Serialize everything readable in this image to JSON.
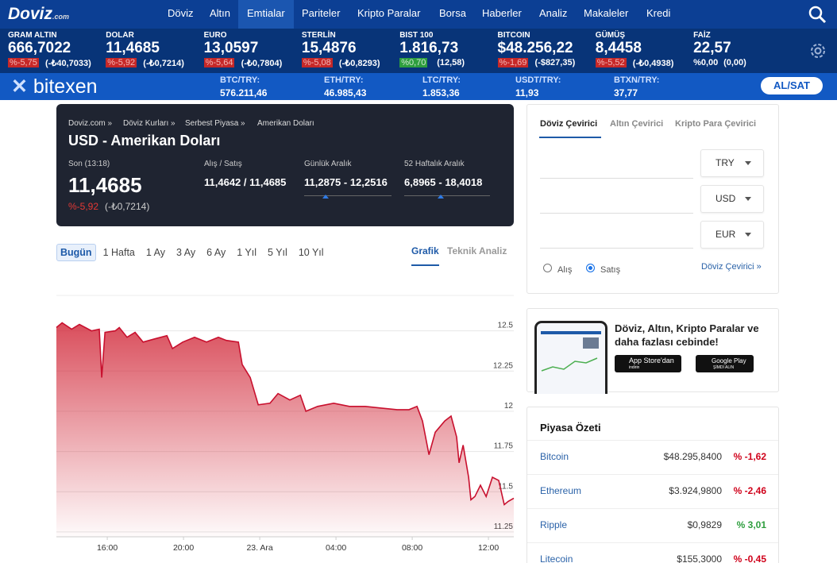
{
  "header": {
    "logo": "Doviz",
    "logo_suffix": ".com",
    "nav": [
      "Döviz",
      "Altın",
      "Emtialar",
      "Pariteler",
      "Kripto Paralar",
      "Borsa",
      "Haberler",
      "Analiz",
      "Makaleler",
      "Kredi"
    ],
    "active_nav": 2
  },
  "tickers": [
    {
      "name": "GRAM ALTIN",
      "value": "666,7022",
      "change": "%-5,75",
      "change_abs": "(-₺40,7033)",
      "change_color": "#c62828"
    },
    {
      "name": "DOLAR",
      "value": "11,4685",
      "change": "%-5,92",
      "change_abs": "(-₺0,7214)",
      "change_color": "#c62828"
    },
    {
      "name": "EURO",
      "value": "13,0597",
      "change": "%-5,64",
      "change_abs": "(-₺0,7804)",
      "change_color": "#c62828"
    },
    {
      "name": "STERLİN",
      "value": "15,4876",
      "change": "%-5,08",
      "change_abs": "(-₺0,8293)",
      "change_color": "#c62828"
    },
    {
      "name": "BIST 100",
      "value": "1.816,73",
      "change": "%0,70",
      "change_abs": "(12,58)",
      "change_color": "#2e9e3e"
    },
    {
      "name": "BITCOIN",
      "value": "$48.256,22",
      "change": "%-1,69",
      "change_abs": "(-$827,35)",
      "change_color": "#c62828"
    },
    {
      "name": "GÜMÜŞ",
      "value": "8,4458",
      "change": "%-5,52",
      "change_abs": "(-₺0,4938)",
      "change_color": "#c62828"
    },
    {
      "name": "FAİZ",
      "value": "22,57",
      "change": "%0,00",
      "change_abs": "(0,00)"
    }
  ],
  "bitexen": {
    "brand": "bitexen",
    "items": [
      {
        "pair": "BTC/TRY:",
        "price": "576.211,46"
      },
      {
        "pair": "ETH/TRY:",
        "price": "46.985,43"
      },
      {
        "pair": "LTC/TRY:",
        "price": "1.853,36"
      },
      {
        "pair": "USDT/TRY:",
        "price": "11,93"
      },
      {
        "pair": "BTXN/TRY:",
        "price": "37,77"
      }
    ],
    "button": "AL/SAT"
  },
  "summary": {
    "breadcrumbs": [
      "Doviz.com »",
      "Döviz Kurları »",
      "Serbest Piyasa »",
      "Amerikan Doları"
    ],
    "title": "USD - Amerikan Doları",
    "last_label": "Son (13:18)",
    "last_value": "11,4685",
    "change": "%-5,92",
    "change_abs": "(-₺0,7214)",
    "bid_ask_label": "Alış / Satış",
    "bid_ask_value": "11,4642 / 11,4685",
    "daily_label": "Günlük Aralık",
    "daily_value": "11,2875 - 12,2516",
    "weekly_label": "52 Haftalık Aralık",
    "weekly_value": "6,8965 - 18,4018"
  },
  "periods": [
    "Bugün",
    "1 Hafta",
    "1 Ay",
    "3 Ay",
    "6 Ay",
    "1 Yıl",
    "5 Yıl",
    "10 Yıl"
  ],
  "active_period": 0,
  "chart_tabs": [
    "Grafik",
    "Teknik Analiz"
  ],
  "chart_data": {
    "type": "line",
    "color": "#c8102e",
    "x": [
      13.33,
      13.63,
      14.13,
      14.54,
      15.17,
      15.58,
      15.71,
      15.88,
      16.42,
      16.63,
      17.04,
      17.46,
      17.88,
      18.5,
      19.13,
      19.42,
      19.96,
      20.58,
      21.21,
      21.83,
      22.25,
      22.88,
      23.08,
      23.5,
      23.92,
      24.54,
      24.96,
      25.58,
      26.13,
      26.42,
      27.04,
      27.88,
      28.71,
      29.54,
      30.38,
      31.21,
      31.83,
      32.25,
      32.54,
      32.88,
      33.21,
      33.71,
      34.04,
      34.33,
      34.46,
      34.67,
      34.96,
      35.08,
      35.29,
      35.58,
      35.88,
      36.21,
      36.54,
      36.83,
      37.04,
      37.33
    ],
    "values": [
      12.52,
      12.55,
      12.51,
      12.54,
      12.5,
      12.51,
      12.21,
      12.49,
      12.5,
      12.52,
      12.46,
      12.49,
      12.43,
      12.45,
      12.47,
      12.39,
      12.43,
      12.46,
      12.43,
      12.46,
      12.44,
      12.43,
      12.29,
      12.21,
      12.04,
      12.05,
      12.11,
      12.07,
      12.1,
      12.0,
      12.03,
      12.05,
      12.03,
      12.03,
      12.02,
      12.01,
      12.01,
      12.03,
      11.94,
      11.73,
      11.87,
      11.94,
      11.97,
      11.84,
      11.68,
      11.79,
      11.59,
      11.45,
      11.47,
      11.54,
      11.47,
      11.59,
      11.57,
      11.42,
      11.44,
      11.46
    ],
    "xlim": [
      13.33,
      37.33
    ],
    "xticks": [
      {
        "value": 16,
        "label": "16:00"
      },
      {
        "value": 20,
        "label": "20:00"
      },
      {
        "value": 24,
        "label": "23. Ara"
      },
      {
        "value": 28,
        "label": "04:00"
      },
      {
        "value": 32,
        "label": "08:00"
      },
      {
        "value": 36,
        "label": "12:00"
      }
    ],
    "ylim": [
      11.22,
      12.72
    ],
    "yticks": [
      11.25,
      11.5,
      11.75,
      12,
      12.25,
      12.5
    ],
    "grid": true
  },
  "converter": {
    "tabs": [
      "Döviz Çevirici",
      "Altın Çevirici",
      "Kripto Para Çevirici"
    ],
    "currencies": [
      "TRY",
      "USD",
      "EUR"
    ],
    "radios": [
      "Alış",
      "Satış"
    ],
    "selected_radio": 1,
    "link": "Döviz Çevirici »"
  },
  "app_promo": {
    "text": "Döviz, Altın, Kripto Paralar ve daha fazlası cebinde!",
    "appstore": "App Store'dan",
    "appstore_sub": "indirin",
    "googleplay": "Google Play",
    "googleplay_sub": "ŞİMDİ ALIN"
  },
  "market": {
    "title": "Piyasa Özeti",
    "rows": [
      {
        "name": "Bitcoin",
        "price": "$48.295,8400",
        "change": "% -1,62",
        "color": "#d0021b"
      },
      {
        "name": "Ethereum",
        "price": "$3.924,9800",
        "change": "% -2,46",
        "color": "#d0021b"
      },
      {
        "name": "Ripple",
        "price": "$0,9829",
        "change": "% 3,01",
        "color": "#2e9e3e"
      },
      {
        "name": "Litecoin",
        "price": "$155,3000",
        "change": "% -0,45",
        "color": "#d0021b"
      }
    ]
  }
}
